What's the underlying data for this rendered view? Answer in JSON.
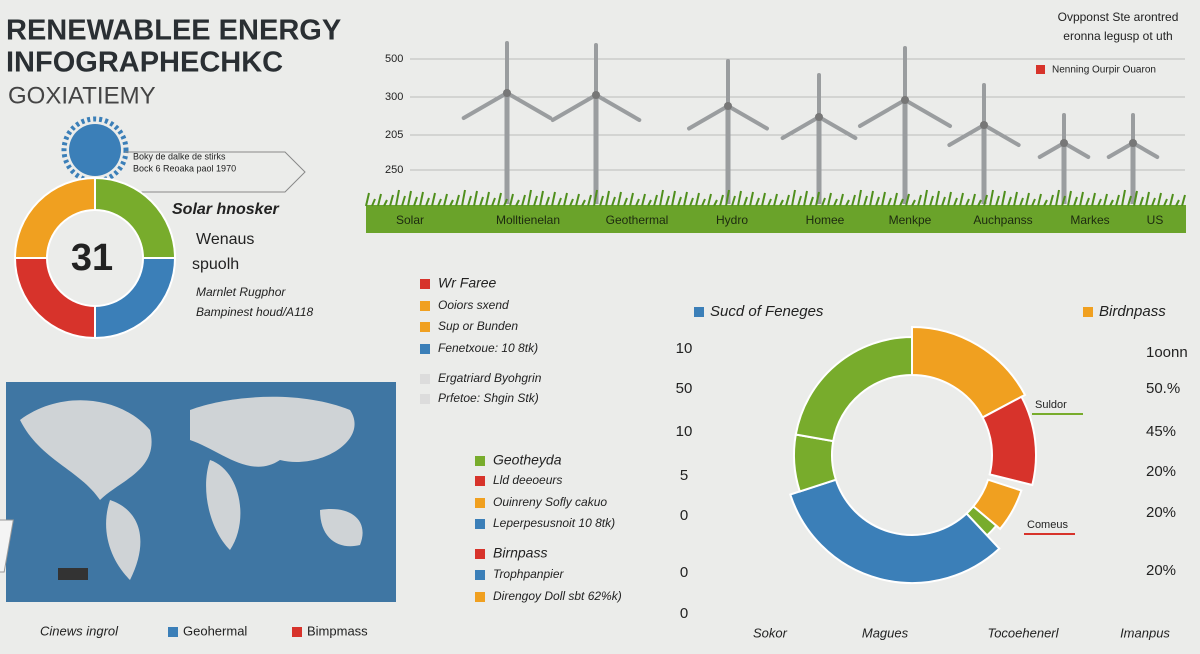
{
  "header": {
    "title": [
      "RENEWABLEE ENERGY",
      "INFOGRAPHECHKC"
    ],
    "subtitle": "GOXIATIEMY"
  },
  "top_right": {
    "note": [
      "Ovpponst Ste arontred",
      "eronna legusp ot uth"
    ],
    "legend": {
      "label": "Nenning  Ourpir Ouaron",
      "color": "#d7332b"
    }
  },
  "wind_chart": {
    "y_labels": [
      "500",
      "300",
      "205",
      "250"
    ],
    "categories": [
      "Solar",
      "Molltienelan",
      "Geothermal",
      "Hydro",
      "Homee",
      "Menkpe",
      "Auchpanss",
      "Markes",
      "US"
    ]
  },
  "sun_callout": [
    "Boky de dalke de stirks",
    "Bock 6 Reoaka paol 1970"
  ],
  "donut": {
    "center": "31",
    "labels": [
      "Solar hnosker",
      "Wenaus",
      "spuolh"
    ],
    "notes": [
      "Marnlet Rugphor",
      "Bampinest houd/A118"
    ]
  },
  "legends": [
    [
      {
        "label": "Wr Faree",
        "color": "#d7332b"
      },
      {
        "label": "Ooiors sxend",
        "color": "#f0a020"
      },
      {
        "label": "Sup or Bunden",
        "color": "#f0a020"
      },
      {
        "label": "Fenetxoue: 10 8tk)",
        "color": "#3b7fb8"
      },
      {
        "label": "Ergatriard Byohgrin",
        "color": "#dcdcdc"
      },
      {
        "label": "Prfetoe: Shgin Stk)",
        "color": "#dcdcdc"
      }
    ],
    [
      {
        "label": "Geotheyda",
        "color": "#78ac2c"
      },
      {
        "label": "Lld deeoeurs",
        "color": "#d7332b"
      },
      {
        "label": "Ouinreny Sofly cakuo",
        "color": "#f0a020"
      },
      {
        "label": "Leperpesusnoit 10 8tk)",
        "color": "#3b7fb8"
      }
    ],
    [
      {
        "label": "Birnpass",
        "color": "#d7332b"
      },
      {
        "label": "Trophpanpier",
        "color": "#3b7fb8"
      },
      {
        "label": "Direngoy Doll sbt 62%k)",
        "color": "#f0a020"
      }
    ]
  ],
  "bottom_left": {
    "title": "Cinews ingrol",
    "items": [
      {
        "label": "Geohermal",
        "color": "#3b7fb8"
      },
      {
        "label": "Bimpmass",
        "color": "#d7332b"
      }
    ]
  },
  "ring_chart": {
    "legend": [
      {
        "label": "Sucd of Feneges",
        "color": "#3b7fb8"
      },
      {
        "label": "Birdnpass",
        "color": "#f0a020"
      }
    ],
    "left_axis": [
      "10",
      "50",
      "10",
      "5",
      "0",
      "0",
      "0"
    ],
    "right_axis": [
      "1oonn",
      "50.%",
      "45%",
      "20%",
      "20%",
      "20%"
    ],
    "callouts": [
      {
        "label": "Suldor",
        "color": "#78ac2c"
      },
      {
        "label": "Comeus",
        "color": "#d7332b"
      }
    ],
    "categories": [
      "Sokor",
      "Magues",
      "Tocoehenerl",
      "Imanpus"
    ]
  }
}
